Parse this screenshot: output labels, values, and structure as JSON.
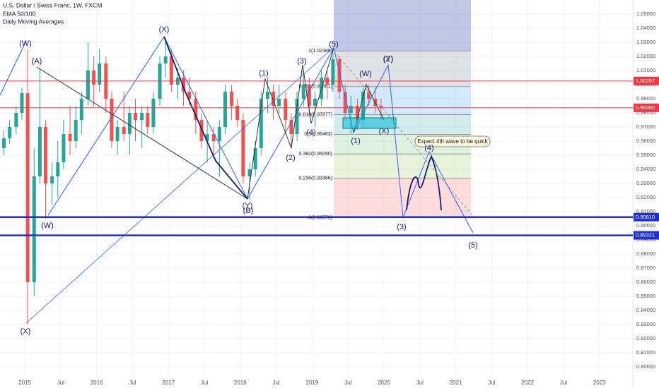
{
  "chart_data": {
    "type": "candlestick",
    "title": "U.S. Dollar / Swiss Franc, 1W, FXCM",
    "indicators": [
      "EMA 50/100",
      "Daily Moving Averages"
    ],
    "x": [
      2014.71,
      2014.79,
      2014.88,
      2014.96,
      2015.04,
      2015.13,
      2015.21,
      2015.29,
      2015.38,
      2015.46,
      2015.54,
      2015.63,
      2015.71,
      2015.79,
      2015.88,
      2015.96,
      2016.04,
      2016.13,
      2016.21,
      2016.29,
      2016.38,
      2016.46,
      2016.54,
      2016.63,
      2016.71,
      2016.79,
      2016.88,
      2016.96,
      2017.04,
      2017.13,
      2017.21,
      2017.29,
      2017.38,
      2017.46,
      2017.54,
      2017.63,
      2017.71,
      2017.79,
      2017.88,
      2017.96,
      2018.04,
      2018.13,
      2018.21,
      2018.29,
      2018.38,
      2018.46,
      2018.54,
      2018.63,
      2018.71,
      2018.79,
      2018.88,
      2018.96,
      2019.04,
      2019.13,
      2019.21,
      2019.29,
      2019.38,
      2019.46,
      2019.54,
      2019.63,
      2019.71,
      2019.79,
      2019.88,
      2019.96
    ],
    "open": [
      0.955,
      0.962,
      0.97,
      0.98,
      0.994,
      0.86,
      0.935,
      0.97,
      0.93,
      0.935,
      0.945,
      0.965,
      0.96,
      0.975,
      0.99,
      1.01,
      1.0,
      1.015,
      0.99,
      0.96,
      0.97,
      0.965,
      0.98,
      0.975,
      0.98,
      0.97,
      0.99,
      1.015,
      1.02,
      1.0,
      1.005,
      0.995,
      0.99,
      0.975,
      0.96,
      0.965,
      0.96,
      0.97,
      0.995,
      0.985,
      0.975,
      0.935,
      0.94,
      0.955,
      0.99,
      0.995,
      0.985,
      0.99,
      0.975,
      0.965,
      0.99,
      1.0,
      0.985,
      0.99,
      1.005,
      1.0,
      1.018,
      0.995,
      0.98,
      0.985,
      0.975,
      0.995,
      0.99,
      0.985
    ],
    "high": [
      0.968,
      0.975,
      0.985,
      0.998,
      1.025,
      0.955,
      1.012,
      0.975,
      0.945,
      0.96,
      0.975,
      0.985,
      0.985,
      0.995,
      1.03,
      1.02,
      1.025,
      1.02,
      0.995,
      0.975,
      0.995,
      0.985,
      0.99,
      0.985,
      0.985,
      0.995,
      1.02,
      1.033,
      1.025,
      1.012,
      1.01,
      1.005,
      0.995,
      0.98,
      0.975,
      0.97,
      0.975,
      1.0,
      1.0,
      0.99,
      0.98,
      0.945,
      0.96,
      0.995,
      1.005,
      1.0,
      1.0,
      0.995,
      0.98,
      0.995,
      1.01,
      1.005,
      0.995,
      1.01,
      1.01,
      1.024,
      1.02,
      1.0,
      0.992,
      0.99,
      0.998,
      1.0,
      0.998,
      0.99
    ],
    "low": [
      0.95,
      0.958,
      0.965,
      0.975,
      0.83,
      0.85,
      0.93,
      0.905,
      0.915,
      0.92,
      0.94,
      0.95,
      0.955,
      0.965,
      0.985,
      0.985,
      0.995,
      0.98,
      0.955,
      0.95,
      0.96,
      0.95,
      0.96,
      0.955,
      0.965,
      0.965,
      0.985,
      1.005,
      0.995,
      0.99,
      0.985,
      0.985,
      0.965,
      0.955,
      0.945,
      0.95,
      0.935,
      0.965,
      0.975,
      0.97,
      0.93,
      0.918,
      0.935,
      0.95,
      0.98,
      0.975,
      0.98,
      0.965,
      0.955,
      0.96,
      0.985,
      0.98,
      0.97,
      0.985,
      0.99,
      0.995,
      0.99,
      0.975,
      0.965,
      0.968,
      0.97,
      0.985,
      0.98,
      0.975
    ],
    "close": [
      0.962,
      0.97,
      0.98,
      0.994,
      0.86,
      0.935,
      0.97,
      0.93,
      0.935,
      0.945,
      0.965,
      0.96,
      0.975,
      0.99,
      1.01,
      1.0,
      1.015,
      0.99,
      0.96,
      0.97,
      0.965,
      0.98,
      0.975,
      0.98,
      0.97,
      0.99,
      1.015,
      1.02,
      1.0,
      1.005,
      0.995,
      0.99,
      0.975,
      0.96,
      0.965,
      0.96,
      0.97,
      0.995,
      0.985,
      0.975,
      0.935,
      0.94,
      0.955,
      0.99,
      0.995,
      0.985,
      0.99,
      0.975,
      0.965,
      0.99,
      1.0,
      0.985,
      0.99,
      1.005,
      1.0,
      1.018,
      0.995,
      0.98,
      0.985,
      0.975,
      0.995,
      0.99,
      0.985,
      0.9836
    ],
    "up_color": "#26a69a",
    "down_color": "#ef5350",
    "xlim": [
      2014.655,
      2023.465
    ],
    "ylim": [
      0.792,
      1.06
    ],
    "xticks": [
      2015,
      {
        "value": 2015.5,
        "label": "Jul"
      },
      2016,
      {
        "value": 2016.5,
        "label": "Jul"
      },
      2017,
      {
        "value": 2017.5,
        "label": "Jul"
      },
      2018,
      {
        "value": 2018.5,
        "label": "Jul"
      },
      2019,
      {
        "value": 2019.5,
        "label": "Jul"
      },
      2020,
      {
        "value": 2020.5,
        "label": "Jul"
      },
      2021,
      {
        "value": 2021.5,
        "label": "Jul"
      },
      2022,
      {
        "value": 2022.5,
        "label": "Jul"
      },
      2023
    ],
    "yticks": [
      {
        "value": 1.05,
        "label": "1.05000"
      },
      {
        "value": 1.04,
        "label": "1.04000"
      },
      {
        "value": 1.03,
        "label": "1.03000"
      },
      {
        "value": 1.02,
        "label": "1.02000"
      },
      {
        "value": 1.01,
        "label": "1.01000"
      },
      {
        "value": 1.0,
        "label": "1.00000"
      },
      {
        "value": 0.99,
        "label": "0.99000"
      },
      {
        "value": 0.98,
        "label": "0.98000"
      },
      {
        "value": 0.97,
        "label": "0.97000"
      },
      {
        "value": 0.96,
        "label": "0.96000"
      },
      {
        "value": 0.95,
        "label": "0.95000"
      },
      {
        "value": 0.94,
        "label": "0.94000"
      },
      {
        "value": 0.93,
        "label": "0.93000"
      },
      {
        "value": 0.92,
        "label": "0.92000"
      },
      {
        "value": 0.91,
        "label": "0.91000"
      },
      {
        "value": 0.9,
        "label": "0.90000"
      },
      {
        "value": 0.89,
        "label": "0.89000"
      },
      {
        "value": 0.88,
        "label": "0.88000"
      },
      {
        "value": 0.87,
        "label": "0.87000"
      },
      {
        "value": 0.86,
        "label": "0.86000"
      },
      {
        "value": 0.85,
        "label": "0.85000"
      },
      {
        "value": 0.84,
        "label": "0.84000"
      },
      {
        "value": 0.83,
        "label": "0.83000"
      },
      {
        "value": 0.82,
        "label": "0.82000"
      },
      {
        "value": 0.81,
        "label": "0.81000"
      },
      {
        "value": 0.8,
        "label": "0.80000"
      }
    ],
    "grid": true,
    "horizontal_lines": [
      {
        "value": 1.00257,
        "color": "#f23645"
      },
      {
        "value": 0.9836,
        "label": "0.98360",
        "color": "#f23645"
      },
      {
        "value": 0.9061,
        "label": "0.90610",
        "color": "#1f2fd0"
      },
      {
        "value": 0.89321,
        "color": "#1f2fd0"
      }
    ],
    "fib_levels": [
      {
        "price": 1.02388,
        "label": "1(1.02388)",
        "color": "rgba(120,123,134,0.22)"
      },
      {
        "price": 0.99861,
        "label": "0.786(0.99861)",
        "color": "rgba(33,150,243,0.2)"
      },
      {
        "price": 0.97877,
        "label": "0.618(0.97877)",
        "color": "rgba(0,150,136,0.18)"
      },
      {
        "price": 0.96483,
        "label": "0.5(0.96483)",
        "color": "rgba(76,175,80,0.18)"
      },
      {
        "price": 0.9509,
        "label": "0.382(0.95090)",
        "color": "rgba(139,195,74,0.2)"
      },
      {
        "price": 0.93366,
        "label": "0.236(0.93366)",
        "color": "rgba(244,67,54,0.18)"
      },
      {
        "price": 0.90579,
        "label": "0(0.90579)",
        "color": "#2962ff"
      }
    ],
    "wave_labels": [
      "(W)",
      "(A)",
      "(X)",
      "(W)",
      "(X)",
      "(1)",
      "(3)",
      "(5)",
      "(2)",
      "(4)",
      "(Y)",
      "(B)",
      "(W)",
      "(Y)",
      "(Z)",
      "(X)",
      "(1)",
      "(3)",
      "(5)",
      "(4)"
    ],
    "callout": "Expect 4th wave to be quick"
  }
}
